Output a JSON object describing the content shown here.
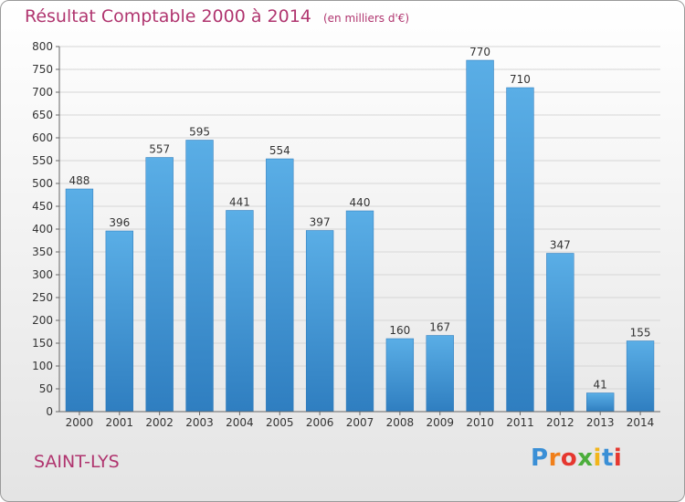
{
  "title": "Résultat Comptable 2000 à 2014",
  "subtitle": "(en milliers d'€)",
  "footer": {
    "name": "SAINT-LYS",
    "logo": "Proxiti"
  },
  "colors": {
    "title": "#b0356f",
    "bar_top": "#5aaee6",
    "bar_bottom": "#2f7ec0",
    "logo": [
      "#3a8fd6",
      "#f07f1a",
      "#e5372f",
      "#4cae3c",
      "#f2b51a",
      "#3a8fd6",
      "#e5372f"
    ]
  },
  "chart_data": {
    "type": "bar",
    "categories": [
      "2000",
      "2001",
      "2002",
      "2003",
      "2004",
      "2005",
      "2006",
      "2007",
      "2008",
      "2009",
      "2010",
      "2011",
      "2012",
      "2013",
      "2014"
    ],
    "values": [
      488,
      396,
      557,
      595,
      441,
      554,
      397,
      440,
      160,
      167,
      770,
      710,
      347,
      41,
      155
    ],
    "ylim": [
      0,
      800
    ],
    "yticks": [
      0,
      50,
      100,
      150,
      200,
      250,
      300,
      350,
      400,
      450,
      500,
      550,
      600,
      650,
      700,
      750,
      800
    ],
    "grid": true,
    "data_labels": true
  }
}
